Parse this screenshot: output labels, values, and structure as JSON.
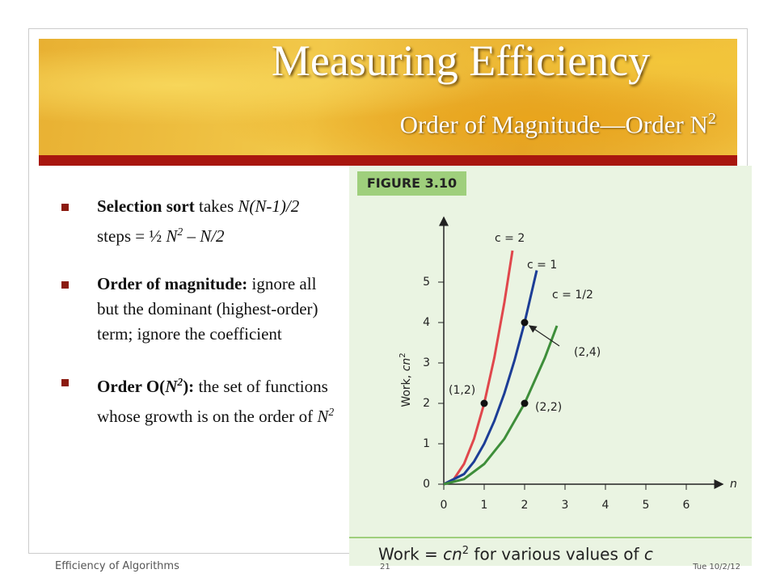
{
  "slide": {
    "title": "Measuring Efficiency",
    "subtitle": [
      {
        "t": "Order of Magnitude—Order N"
      },
      {
        "t": "2",
        "sup": true
      }
    ],
    "bullets": [
      [
        {
          "t": "Selection sort",
          "b": true
        },
        {
          "t": " takes "
        },
        {
          "t": "N(N-1)/2",
          "i": true
        },
        {
          "t": " steps = ½ "
        },
        {
          "t": "N",
          "i": true
        },
        {
          "t": "2",
          "i": true,
          "sup": true
        },
        {
          "t": " – N/2",
          "i": true
        }
      ],
      [
        {
          "t": "Order of magnitude:",
          "b": true
        },
        {
          "t": " ignore all but the dominant (highest-order) term; ignore the coefficient"
        }
      ],
      [
        {
          "t": "Order O(",
          "b": true
        },
        {
          "t": "N",
          "b": true,
          "i": true
        },
        {
          "t": "2",
          "b": true,
          "i": true,
          "sup": true
        },
        {
          "t": "):",
          "b": true
        },
        {
          "t": "  the set of functions whose growth is on the order of "
        },
        {
          "t": "N",
          "i": true
        },
        {
          "t": "2",
          "i": true,
          "sup": true
        }
      ]
    ]
  },
  "figure": {
    "label": "FIGURE 3.10",
    "caption": [
      {
        "t": "Work = "
      },
      {
        "t": "cn",
        "i": true
      },
      {
        "t": "2",
        "sup": true
      },
      {
        "t": " for various values of "
      },
      {
        "t": "c",
        "i": true
      }
    ]
  },
  "footer": {
    "left": "Efficiency of Algorithms",
    "page": "21",
    "date": "Tue 10/2/12"
  },
  "chart_data": {
    "type": "line",
    "x_label": "n",
    "y_label": [
      {
        "t": "Work, "
      },
      {
        "t": "cn",
        "i": true
      },
      {
        "t": "2",
        "sup": true
      }
    ],
    "xlim": [
      0,
      6.9
    ],
    "ylim": [
      0,
      6.6
    ],
    "xticks": [
      0,
      1,
      2,
      3,
      4,
      5,
      6
    ],
    "yticks": [
      0,
      1,
      2,
      3,
      4,
      5
    ],
    "series": [
      {
        "name": "c = 2",
        "color": "#e0474c",
        "x": [
          0,
          0.25,
          0.5,
          0.75,
          1,
          1.25,
          1.5,
          1.7
        ],
        "values": [
          0,
          0.125,
          0.5,
          1.125,
          2,
          3.125,
          4.5,
          5.78
        ]
      },
      {
        "name": "c = 1",
        "color": "#1c3d96",
        "x": [
          0,
          0.5,
          0.75,
          1,
          1.25,
          1.5,
          1.75,
          2,
          2.3
        ],
        "values": [
          0,
          0.25,
          0.5625,
          1,
          1.5625,
          2.25,
          3.0625,
          4,
          5.29
        ]
      },
      {
        "name": "c = 1/2",
        "color": "#3e8e3a",
        "x": [
          0,
          0.5,
          1,
          1.5,
          2,
          2.5,
          2.8
        ],
        "values": [
          0,
          0.125,
          0.5,
          1.125,
          2,
          3.125,
          3.92
        ]
      }
    ],
    "points": [
      {
        "x": 1,
        "y": 2,
        "label": "(1,2)"
      },
      {
        "x": 2,
        "y": 4,
        "label": "(2,4)"
      },
      {
        "x": 2,
        "y": 2,
        "label": "(2,2)"
      }
    ]
  }
}
